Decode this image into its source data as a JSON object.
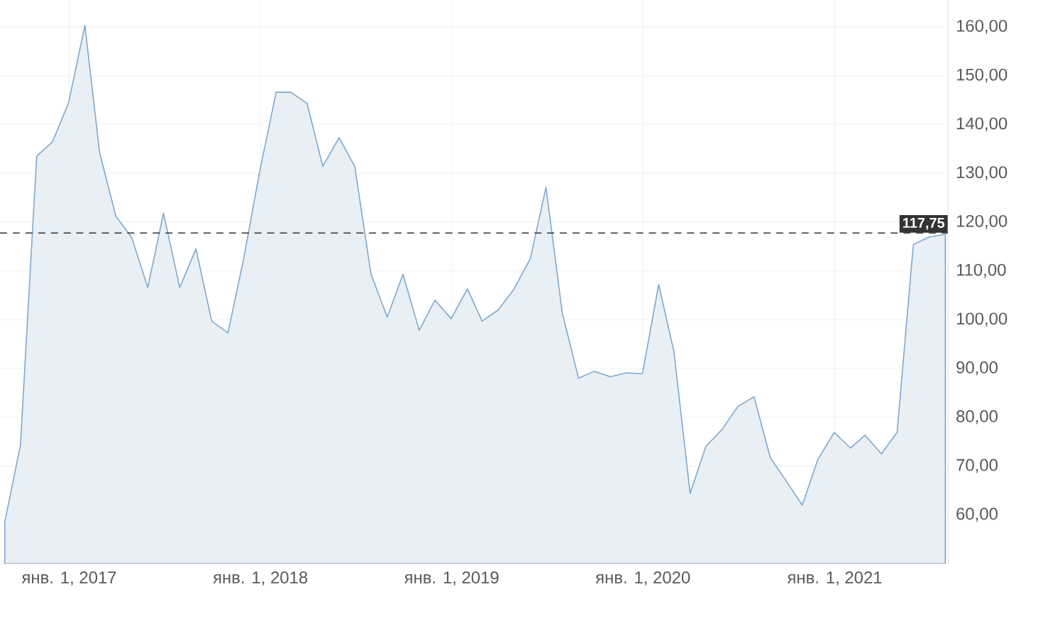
{
  "chart_data": {
    "type": "area",
    "color": "#e8eff5",
    "x": [
      "2016-08-31",
      "2016-09-30",
      "2016-10-31",
      "2016-11-30",
      "2016-12-31",
      "2017-01-31",
      "2017-02-28",
      "2017-03-31",
      "2017-04-30",
      "2017-05-31",
      "2017-06-30",
      "2017-07-31",
      "2017-08-31",
      "2017-09-30",
      "2017-10-31",
      "2017-11-30",
      "2017-12-31",
      "2018-01-31",
      "2018-02-28",
      "2018-03-31",
      "2018-04-30",
      "2018-05-31",
      "2018-06-30",
      "2018-07-31",
      "2018-08-31",
      "2018-09-30",
      "2018-10-31",
      "2018-11-30",
      "2018-12-31",
      "2019-01-31",
      "2019-02-28",
      "2019-03-31",
      "2019-04-30",
      "2019-05-31",
      "2019-06-30",
      "2019-07-31",
      "2019-08-31",
      "2019-09-30",
      "2019-10-31",
      "2019-11-30",
      "2019-12-31",
      "2020-01-31",
      "2020-02-29",
      "2020-03-31",
      "2020-04-30",
      "2020-05-31",
      "2020-06-30",
      "2020-07-31",
      "2020-08-31",
      "2020-09-30",
      "2020-10-31",
      "2020-11-30",
      "2020-12-31",
      "2021-01-31",
      "2021-02-28",
      "2021-03-31",
      "2021-04-30",
      "2021-05-31",
      "2021-06-30",
      "2021-07-31"
    ],
    "values": [
      58.5,
      74.3,
      133.5,
      136.4,
      144.5,
      160.3,
      134.3,
      121.2,
      116.9,
      106.6,
      121.8,
      106.6,
      114.5,
      99.7,
      97.3,
      112.5,
      130.6,
      146.6,
      146.6,
      144.3,
      131.4,
      137.3,
      131.4,
      109.3,
      100.5,
      109.3,
      97.8,
      104.0,
      100.2,
      106.3,
      99.7,
      102.0,
      106.3,
      112.5,
      127.1,
      101.4,
      88.0,
      89.4,
      88.3,
      89.1,
      88.9,
      107.2,
      93.5,
      64.4,
      74.0,
      77.5,
      82.2,
      84.2,
      71.7,
      67.0,
      62.0,
      71.4,
      76.9,
      73.7,
      76.3,
      72.5,
      76.9,
      115.4,
      116.9,
      117.5
    ],
    "xlim": [
      "2016-08-22",
      "2021-08-05"
    ],
    "xticks": [
      {
        "value": "2017-01-01",
        "label": "янв. 1, 2017"
      },
      {
        "value": "2018-01-01",
        "label": "янв. 1, 2018"
      },
      {
        "value": "2019-01-01",
        "label": "янв. 1, 2019"
      },
      {
        "value": "2020-01-01",
        "label": "янв. 1, 2020"
      },
      {
        "value": "2021-01-01",
        "label": "янв. 1, 2021"
      }
    ],
    "ylim": [
      50,
      165.5
    ],
    "yticks": [
      {
        "value": 60,
        "label": "60,00"
      },
      {
        "value": 70,
        "label": "70,00"
      },
      {
        "value": 80,
        "label": "80,00"
      },
      {
        "value": 90,
        "label": "90,00"
      },
      {
        "value": 100,
        "label": "100,00"
      },
      {
        "value": 110,
        "label": "110,00"
      },
      {
        "value": 120,
        "label": "120,00"
      },
      {
        "value": 130,
        "label": "130,00"
      },
      {
        "value": 140,
        "label": "140,00"
      },
      {
        "value": 150,
        "label": "150,00"
      },
      {
        "value": 160,
        "label": "160,00"
      }
    ],
    "ref_lines": [
      {
        "axis": "y",
        "value": 117.75,
        "label": "117,75",
        "color": "#333333",
        "line_style": "dashed"
      }
    ],
    "grid": true
  }
}
